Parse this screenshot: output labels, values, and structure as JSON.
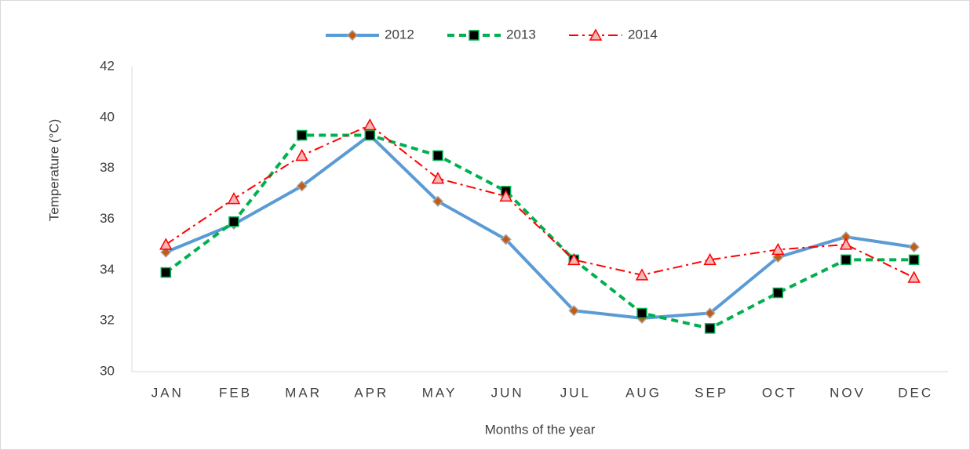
{
  "chart_data": {
    "type": "line",
    "x_label": "Months of the year",
    "y_label": "Temperature (°C)",
    "categories": [
      "JAN",
      "FEB",
      "MAR",
      "APR",
      "MAY",
      "JUN",
      "JUL",
      "AUG",
      "SEP",
      "OCT",
      "NOV",
      "DEC"
    ],
    "series": [
      {
        "name": "2012",
        "color": "#5b9bd5",
        "marker": "diamond",
        "marker_color": "#c55a11",
        "dash": "solid",
        "values": [
          34.7,
          35.8,
          37.3,
          39.3,
          36.7,
          35.2,
          32.4,
          32.1,
          32.3,
          34.5,
          35.3,
          34.9
        ]
      },
      {
        "name": "2013",
        "color": "#00b050",
        "marker": "square",
        "marker_color": "#000000",
        "dash": "dash",
        "values": [
          33.9,
          35.9,
          39.3,
          39.3,
          38.5,
          37.1,
          34.4,
          32.3,
          31.7,
          33.1,
          34.4,
          34.4
        ]
      },
      {
        "name": "2014",
        "color": "#ff0000",
        "marker": "triangle",
        "marker_color": "#f4b6b6",
        "dash": "dashdot",
        "values": [
          35.0,
          36.8,
          38.5,
          39.7,
          37.6,
          36.9,
          34.4,
          33.8,
          34.4,
          34.8,
          35.0,
          33.7
        ]
      }
    ],
    "ylim": [
      30,
      42
    ],
    "yticks": [
      30,
      32,
      34,
      36,
      38,
      40,
      42
    ],
    "grid": false,
    "legend": "top"
  }
}
